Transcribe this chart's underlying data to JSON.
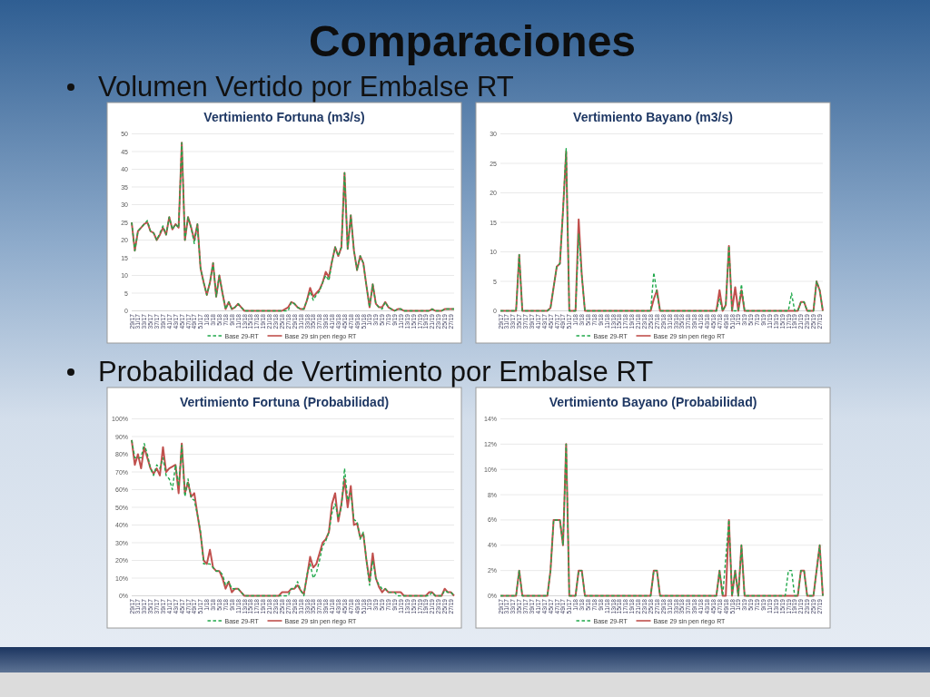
{
  "chart_data": [
    {
      "type": "line",
      "title": "Vertimiento Fortuna (m3/s)",
      "annotations": [
        "Comparaciones",
        "Volumen Vertido por Embalse RT"
      ],
      "categories": [
        "29/17",
        null,
        "31/17",
        null,
        "33/17",
        null,
        "35/17",
        null,
        "37/17",
        null,
        "39/17",
        null,
        "41/17",
        null,
        "43/17",
        null,
        "45/17",
        null,
        "47/17",
        null,
        "49/17",
        null,
        "51/17",
        null,
        "1/18",
        null,
        "3/18",
        null,
        "5/18",
        null,
        "7/18",
        null,
        "9/18",
        null,
        "11/18",
        null,
        "13/18",
        null,
        "15/18",
        null,
        "17/18",
        null,
        "19/18",
        null,
        "21/18",
        null,
        "23/18",
        null,
        "25/18",
        null,
        "27/18",
        null,
        "29/18",
        null,
        "31/18",
        null,
        "33/18",
        null,
        "35/18",
        null,
        "37/18",
        null,
        "39/18",
        null,
        "41/18",
        null,
        "43/18",
        null,
        "45/18",
        null,
        "47/18",
        null,
        "49/18",
        null,
        "51/18",
        null,
        "1/19",
        null,
        "3/19",
        null,
        "5/19",
        null,
        "7/19",
        null,
        "9/19",
        null,
        "11/19",
        null,
        "13/19",
        null,
        "15/19",
        null,
        "17/19",
        null,
        "19/19",
        null,
        "21/19",
        null,
        "23/19",
        null,
        "25/19",
        null,
        "27/19",
        null
      ],
      "series": [
        {
          "name": "Base 29-RT",
          "color": "#1fa84a",
          "line_style": "dashed",
          "values": [
            25,
            17,
            22.5,
            23.5,
            24.5,
            25.5,
            22.5,
            22,
            20,
            22,
            24,
            21.5,
            26.5,
            23,
            24.5,
            23.5,
            47.5,
            20,
            26.5,
            23.5,
            19,
            24.5,
            12,
            8,
            4.5,
            8,
            13.5,
            4,
            10,
            5,
            0.5,
            2.5,
            0.5,
            1,
            2,
            1,
            0,
            0,
            0,
            0,
            0,
            0,
            0,
            0,
            0,
            0,
            0,
            0,
            0,
            0,
            0,
            2.5,
            2,
            1,
            0.5,
            0.5,
            3,
            5.5,
            3,
            4.5,
            5.5,
            8,
            10,
            8.5,
            14,
            18,
            15.5,
            18,
            39,
            17.5,
            27,
            17,
            11.5,
            15.5,
            13.5,
            7,
            1,
            7.5,
            2,
            1,
            0.5,
            2.5,
            1,
            0.5,
            0,
            0.5,
            0.5,
            0,
            0,
            0,
            0,
            0,
            0,
            0,
            0,
            0,
            0.5,
            0,
            0,
            0,
            0.5,
            0.5,
            0.5,
            0.5
          ]
        },
        {
          "name": "Base 29 sin pen riego RT",
          "color": "#c0504d",
          "line_style": "solid",
          "values": [
            25,
            17,
            22.5,
            23.5,
            24.5,
            25,
            22.5,
            22,
            20,
            21.5,
            23.5,
            21.5,
            26.5,
            23,
            24.5,
            23.5,
            47.5,
            20,
            26.5,
            23.5,
            20,
            24.5,
            12,
            8,
            4.5,
            8,
            13.5,
            4,
            10,
            5,
            0.5,
            2.5,
            0.5,
            1,
            2,
            1,
            0,
            0,
            0,
            0,
            0,
            0,
            0,
            0,
            0,
            0,
            0,
            0,
            0,
            0.5,
            1,
            2.5,
            2,
            1,
            0.5,
            0.5,
            3,
            6.5,
            4,
            5,
            6,
            8,
            11,
            9.5,
            14,
            18,
            15.5,
            18,
            39,
            17.5,
            27,
            17,
            11.5,
            15.5,
            13.5,
            7,
            1,
            7.5,
            2,
            1,
            1,
            2.5,
            1,
            0.5,
            0,
            0.5,
            0.5,
            0,
            0,
            0,
            0,
            0,
            0,
            0,
            0,
            0,
            0.5,
            0,
            0,
            0,
            0.5,
            0.5,
            0.5,
            0.5
          ]
        }
      ],
      "ylim": [
        0,
        50
      ],
      "yticks": [
        0,
        5,
        10,
        15,
        20,
        25,
        30,
        35,
        40,
        45,
        50
      ],
      "grid": "y",
      "legend": "bottom"
    },
    {
      "type": "line",
      "title": "Vertimiento Bayano (m3/s)",
      "categories": [
        "29/17",
        null,
        "31/17",
        null,
        "33/17",
        null,
        "35/17",
        null,
        "37/17",
        null,
        "39/17",
        null,
        "41/17",
        null,
        "43/17",
        null,
        "45/17",
        null,
        "47/17",
        null,
        "49/17",
        null,
        "51/17",
        null,
        "1/18",
        null,
        "3/18",
        null,
        "5/18",
        null,
        "7/18",
        null,
        "9/18",
        null,
        "11/18",
        null,
        "13/18",
        null,
        "15/18",
        null,
        "17/18",
        null,
        "19/18",
        null,
        "21/18",
        null,
        "23/18",
        null,
        "25/18",
        null,
        "27/18",
        null,
        "29/18",
        null,
        "31/18",
        null,
        "33/18",
        null,
        "35/18",
        null,
        "37/18",
        null,
        "39/18",
        null,
        "41/18",
        null,
        "43/18",
        null,
        "45/18",
        null,
        "47/18",
        null,
        "49/18",
        null,
        "51/18",
        null,
        "1/19",
        null,
        "3/19",
        null,
        "5/19",
        null,
        "7/19",
        null,
        "9/19",
        null,
        "11/19",
        null,
        "13/19",
        null,
        "15/19",
        null,
        "17/19",
        null,
        "19/19",
        null,
        "21/19",
        null,
        "23/19",
        null,
        "25/19",
        null,
        "27/19",
        null
      ],
      "series": [
        {
          "name": "Base 29-RT",
          "color": "#1fa84a",
          "line_style": "dashed",
          "values": [
            0,
            0,
            0,
            0,
            0,
            0,
            9.5,
            0,
            0,
            0,
            0,
            0,
            0,
            0,
            0,
            0,
            0.5,
            4,
            7.5,
            8,
            17,
            27.5,
            0,
            0,
            0,
            13,
            6,
            0,
            0,
            0,
            0,
            0,
            0,
            0,
            0,
            0,
            0,
            0,
            0,
            0,
            0,
            0,
            0,
            0,
            0,
            0,
            0,
            0,
            0,
            6.5,
            3,
            0,
            0,
            0,
            0,
            0,
            0,
            0,
            0,
            0,
            0,
            0,
            0,
            0,
            0,
            0,
            0,
            0,
            0,
            0,
            2,
            0,
            1,
            11,
            0,
            0,
            0,
            4.5,
            0,
            0,
            0,
            0,
            0,
            0,
            0,
            0,
            0,
            0,
            0,
            0,
            0,
            0,
            0,
            3,
            0,
            0,
            1.5,
            1.5,
            0,
            0,
            0,
            5,
            3.5,
            0
          ]
        },
        {
          "name": "Base 29 sin pen riego RT",
          "color": "#c0504d",
          "line_style": "solid",
          "values": [
            0,
            0,
            0,
            0,
            0,
            0,
            9.5,
            0,
            0,
            0,
            0,
            0,
            0,
            0,
            0,
            0,
            0.5,
            4,
            7.5,
            8,
            17,
            27,
            0,
            0,
            0,
            15.5,
            6,
            0,
            0,
            0,
            0,
            0,
            0,
            0,
            0,
            0,
            0,
            0,
            0,
            0,
            0,
            0,
            0,
            0,
            0,
            0,
            0,
            0,
            0,
            2,
            3.5,
            0,
            0,
            0,
            0,
            0,
            0,
            0,
            0,
            0,
            0,
            0,
            0,
            0,
            0,
            0,
            0,
            0,
            0,
            0,
            3.5,
            0,
            1,
            11,
            0,
            4,
            0,
            3.5,
            0,
            0,
            0,
            0,
            0,
            0,
            0,
            0,
            0,
            0,
            0,
            0,
            0,
            0,
            0,
            0,
            0,
            0,
            1.5,
            1.5,
            0,
            0,
            0,
            5,
            3.5,
            0
          ]
        }
      ],
      "ylim": [
        0,
        30
      ],
      "yticks": [
        0,
        5,
        10,
        15,
        20,
        25,
        30
      ],
      "grid": "y",
      "legend": "bottom"
    },
    {
      "type": "line",
      "title": "Vertimiento Fortuna (Probabilidad)",
      "annotations": [
        "Probabilidad de Vertimiento por Embalse RT"
      ],
      "categories": [
        "29/17",
        null,
        "31/17",
        null,
        "33/17",
        null,
        "35/17",
        null,
        "37/17",
        null,
        "39/17",
        null,
        "41/17",
        null,
        "43/17",
        null,
        "45/17",
        null,
        "47/17",
        null,
        "49/17",
        null,
        "51/17",
        null,
        "1/18",
        null,
        "3/18",
        null,
        "5/18",
        null,
        "7/18",
        null,
        "9/18",
        null,
        "11/18",
        null,
        "13/18",
        null,
        "15/18",
        null,
        "17/18",
        null,
        "19/18",
        null,
        "21/18",
        null,
        "23/18",
        null,
        "25/18",
        null,
        "27/18",
        null,
        "29/18",
        null,
        "31/18",
        null,
        "33/18",
        null,
        "35/18",
        null,
        "37/18",
        null,
        "39/18",
        null,
        "41/18",
        null,
        "43/18",
        null,
        "45/18",
        null,
        "47/18",
        null,
        "49/18",
        null,
        "51/18",
        null,
        "1/19",
        null,
        "3/19",
        null,
        "5/19",
        null,
        "7/19",
        null,
        "9/19",
        null,
        "11/19",
        null,
        "13/19",
        null,
        "15/19",
        null,
        "17/19",
        null,
        "19/19",
        null,
        "21/19",
        null,
        "23/19",
        null,
        "25/19",
        null,
        "27/19",
        null
      ],
      "series": [
        {
          "name": "Base 29-RT",
          "color": "#1fa84a",
          "line_style": "dashed",
          "values": [
            88,
            78,
            78,
            78,
            86,
            80,
            72,
            68,
            74,
            72,
            78,
            68,
            66,
            60,
            74,
            62,
            85,
            56,
            66,
            55,
            54,
            46,
            36,
            18,
            18,
            18,
            16,
            14,
            14,
            12,
            6,
            8,
            4,
            4,
            4,
            2,
            0,
            0,
            0,
            0,
            0,
            0,
            0,
            0,
            0,
            0,
            0,
            0,
            0,
            0,
            0,
            4,
            4,
            8,
            3,
            0,
            12,
            18,
            10,
            13,
            20,
            28,
            31,
            36,
            47,
            52,
            44,
            50,
            72,
            54,
            58,
            43,
            42,
            32,
            36,
            20,
            6,
            20,
            10,
            6,
            4,
            4,
            2,
            2,
            2,
            0,
            0,
            0,
            0,
            0,
            0,
            0,
            0,
            0,
            0,
            0,
            2,
            0,
            0,
            0,
            3,
            2,
            2,
            0
          ]
        },
        {
          "name": "Base 29 sin pen riego RT",
          "color": "#c0504d",
          "line_style": "solid",
          "values": [
            88,
            74,
            80,
            72,
            84,
            78,
            72,
            69,
            72,
            68,
            84,
            70,
            72,
            73,
            74,
            58,
            86,
            58,
            64,
            56,
            58,
            46,
            35,
            20,
            18,
            26,
            16,
            14,
            14,
            10,
            4,
            8,
            2,
            4,
            4,
            2,
            0,
            0,
            0,
            0,
            0,
            0,
            0,
            0,
            0,
            0,
            0,
            0,
            2,
            2,
            2,
            4,
            4,
            6,
            3,
            1,
            11,
            22,
            16,
            18,
            24,
            30,
            32,
            36,
            52,
            58,
            42,
            52,
            66,
            50,
            62,
            40,
            41,
            33,
            35,
            20,
            8,
            24,
            10,
            5,
            2,
            4,
            2,
            2,
            2,
            2,
            2,
            0,
            0,
            0,
            0,
            0,
            0,
            0,
            0,
            2,
            2,
            0,
            0,
            0,
            4,
            2,
            2,
            0
          ]
        }
      ],
      "ylim": [
        0,
        100
      ],
      "yticks": [
        {
          "value": 0,
          "label": "0%"
        },
        {
          "value": 10,
          "label": "10%"
        },
        {
          "value": 20,
          "label": "20%"
        },
        {
          "value": 30,
          "label": "30%"
        },
        {
          "value": 40,
          "label": "40%"
        },
        {
          "value": 50,
          "label": "50%"
        },
        {
          "value": 60,
          "label": "60%"
        },
        {
          "value": 70,
          "label": "70%"
        },
        {
          "value": 80,
          "label": "80%"
        },
        {
          "value": 90,
          "label": "90%"
        },
        {
          "value": 100,
          "label": "100%"
        }
      ],
      "grid": "y",
      "legend": "bottom"
    },
    {
      "type": "line",
      "title": "Vertimiento Bayano (Probabilidad)",
      "categories": [
        "29/17",
        null,
        "31/17",
        null,
        "33/17",
        null,
        "35/17",
        null,
        "37/17",
        null,
        "39/17",
        null,
        "41/17",
        null,
        "43/17",
        null,
        "45/17",
        null,
        "47/17",
        null,
        "49/17",
        null,
        "51/17",
        null,
        "1/18",
        null,
        "3/18",
        null,
        "5/18",
        null,
        "7/18",
        null,
        "9/18",
        null,
        "11/18",
        null,
        "13/18",
        null,
        "15/18",
        null,
        "17/18",
        null,
        "19/18",
        null,
        "21/18",
        null,
        "23/18",
        null,
        "25/18",
        null,
        "27/18",
        null,
        "29/18",
        null,
        "31/18",
        null,
        "33/18",
        null,
        "35/18",
        null,
        "37/18",
        null,
        "39/18",
        null,
        "41/18",
        null,
        "43/18",
        null,
        "45/18",
        null,
        "47/18",
        null,
        "49/18",
        null,
        "51/18",
        null,
        "1/19",
        null,
        "3/19",
        null,
        "5/19",
        null,
        "7/19",
        null,
        "9/19",
        null,
        "11/19",
        null,
        "13/19",
        null,
        "15/19",
        null,
        "17/19",
        null,
        "19/19",
        null,
        "21/19",
        null,
        "23/19",
        null,
        "25/19",
        null,
        "27/19",
        null
      ],
      "series": [
        {
          "name": "Base 29-RT",
          "color": "#1fa84a",
          "line_style": "dashed",
          "values": [
            0,
            0,
            0,
            0,
            0,
            0,
            2,
            0,
            0,
            0,
            0,
            0,
            0,
            0,
            0,
            0,
            2,
            6,
            6,
            6,
            4,
            12,
            0,
            0,
            0,
            2,
            2,
            0,
            0,
            0,
            0,
            0,
            0,
            0,
            0,
            0,
            0,
            0,
            0,
            0,
            0,
            0,
            0,
            0,
            0,
            0,
            0,
            0,
            0,
            2,
            2,
            0,
            0,
            0,
            0,
            0,
            0,
            0,
            0,
            0,
            0,
            0,
            0,
            0,
            0,
            0,
            0,
            0,
            0,
            0,
            2,
            0,
            3,
            6,
            0,
            2,
            0,
            4,
            0,
            0,
            0,
            0,
            0,
            0,
            0,
            0,
            0,
            0,
            0,
            0,
            0,
            0,
            2,
            2,
            0,
            0,
            2,
            2,
            0,
            0,
            0,
            2,
            4,
            0
          ]
        },
        {
          "name": "Base 29 sin pen riego RT",
          "color": "#c0504d",
          "line_style": "solid",
          "values": [
            0,
            0,
            0,
            0,
            0,
            0,
            2,
            0,
            0,
            0,
            0,
            0,
            0,
            0,
            0,
            0,
            2,
            6,
            6,
            6,
            4,
            12,
            0,
            0,
            0,
            2,
            2,
            0,
            0,
            0,
            0,
            0,
            0,
            0,
            0,
            0,
            0,
            0,
            0,
            0,
            0,
            0,
            0,
            0,
            0,
            0,
            0,
            0,
            0,
            2,
            2,
            0,
            0,
            0,
            0,
            0,
            0,
            0,
            0,
            0,
            0,
            0,
            0,
            0,
            0,
            0,
            0,
            0,
            0,
            0,
            2,
            0,
            0,
            6,
            0,
            2,
            0,
            4,
            0,
            0,
            0,
            0,
            0,
            0,
            0,
            0,
            0,
            0,
            0,
            0,
            0,
            0,
            0,
            0,
            0,
            0,
            2,
            2,
            0,
            0,
            0,
            2,
            4,
            0
          ]
        }
      ],
      "ylim": [
        0,
        14
      ],
      "yticks": [
        {
          "value": 0,
          "label": "0%"
        },
        {
          "value": 2,
          "label": "2%"
        },
        {
          "value": 4,
          "label": "4%"
        },
        {
          "value": 6,
          "label": "6%"
        },
        {
          "value": 8,
          "label": "8%"
        },
        {
          "value": 10,
          "label": "10%"
        },
        {
          "value": 12,
          "label": "12%"
        },
        {
          "value": 14,
          "label": "14%"
        }
      ],
      "grid": "y",
      "legend": "bottom"
    }
  ]
}
